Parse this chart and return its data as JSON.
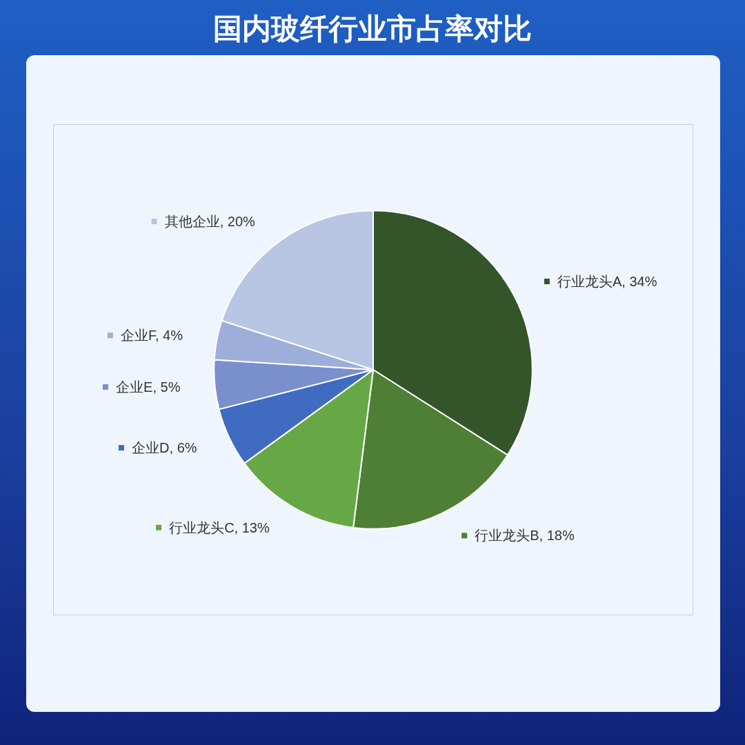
{
  "chart_data": {
    "type": "pie",
    "title": "国内玻纤行业市占率对比",
    "categories": [
      "行业龙头A",
      "行业龙头B",
      "行业龙头C",
      "企业D",
      "企业E",
      "企业F",
      "其他企业"
    ],
    "values": [
      34,
      18,
      13,
      6,
      5,
      4,
      20
    ],
    "value_labels": [
      "34%",
      "18%",
      "13%",
      "6%",
      "5%",
      "4%",
      "20%"
    ],
    "colors": [
      "#34542a",
      "#4e7f35",
      "#67a846",
      "#3f6bc0",
      "#7a90cc",
      "#9eaedb",
      "#b8c6e3"
    ],
    "legend": "right"
  }
}
